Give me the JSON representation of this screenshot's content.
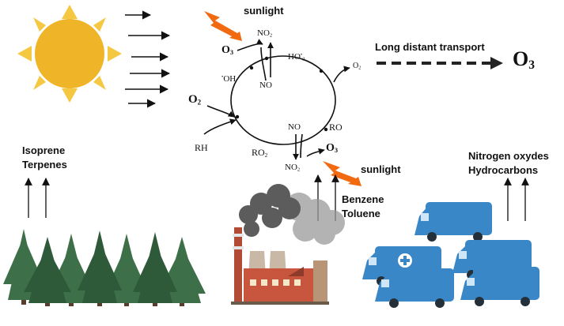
{
  "labels": {
    "sunlight_top": "sunlight",
    "sunlight_mid": "sunlight",
    "long_transport": "Long distant transport",
    "isoprene": "Isoprene",
    "terpenes": "Terpenes",
    "benzene": "Benzene",
    "toluene": "Toluene",
    "nitrogen": "Nitrogen oxydes",
    "hydrocarbons": "Hydrocarbons"
  },
  "chem": {
    "o3_left": {
      "main": "O",
      "sub": "3"
    },
    "no2_top": {
      "main": "NO",
      "sub": "2"
    },
    "no_top": "NO",
    "ho2": {
      "main": "HO",
      "sup": "•",
      "sub": "2"
    },
    "oh": {
      "pre": "•",
      "main": "OH"
    },
    "o2_right": {
      "main": "O",
      "sub": "2"
    },
    "o2_left": {
      "main": "O",
      "sub": "2"
    },
    "rh": "RH",
    "ro2": {
      "main": "RO",
      "sub": "2"
    },
    "no_bottom": "NO",
    "ro": "RO",
    "o3_bottom": {
      "main": "O",
      "sub": "3"
    },
    "no2_bottom": {
      "main": "NO",
      "sub": "2"
    },
    "o3_big": {
      "main": "O",
      "sub": "3"
    }
  },
  "colors": {
    "sun": "#f0b429",
    "ray": "#f5c842",
    "tree_dark": "#2f5a3a",
    "tree_mid": "#3d7048",
    "smoke_dark": "#5c5c5c",
    "smoke_light": "#9a9a9a",
    "van": "#3a87c8",
    "lightning": "#f26a10",
    "factory": "#c8553d"
  },
  "icons": [
    "sun-icon",
    "lightning-icon",
    "forest-icon",
    "factory-icon",
    "smoke-icon",
    "van-fleet-icon"
  ]
}
